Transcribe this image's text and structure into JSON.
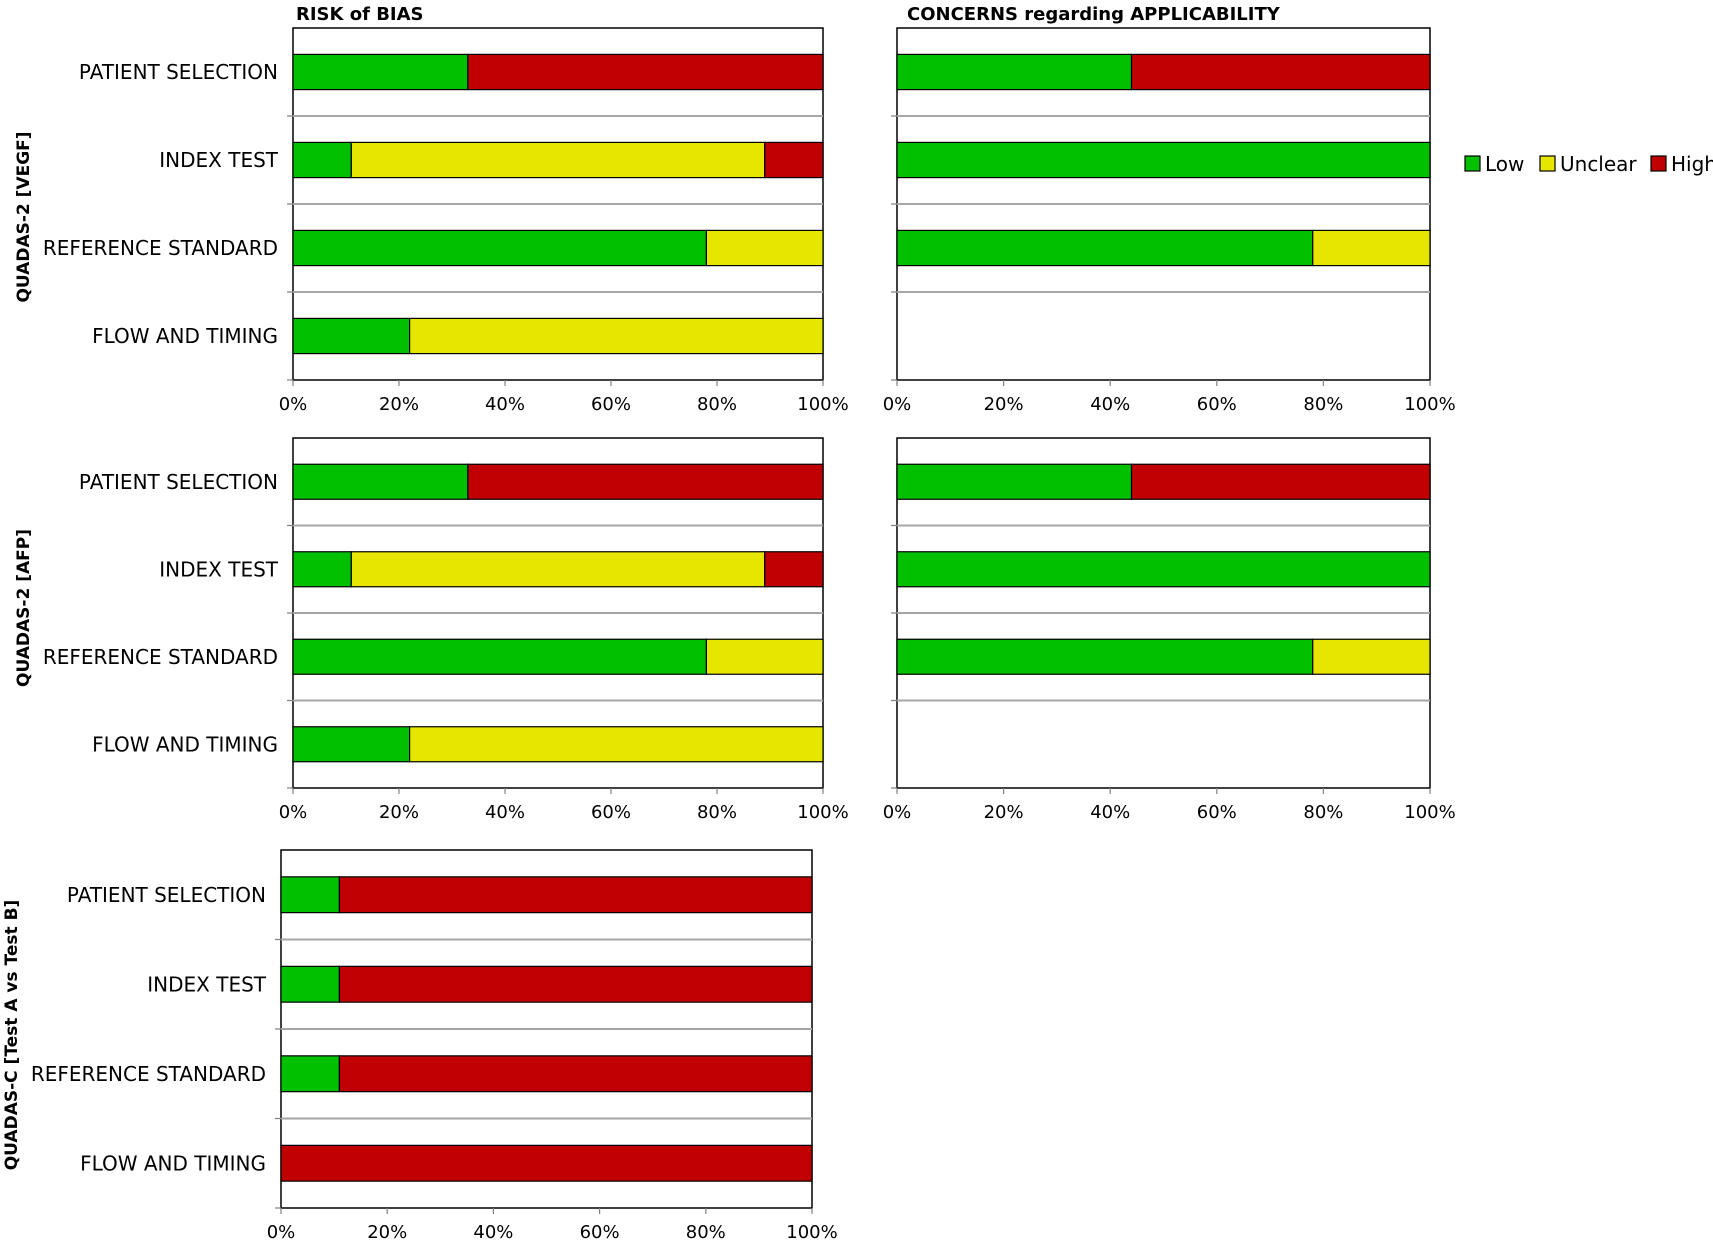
{
  "titles": {
    "risk_of_bias": "RISK of BIAS",
    "applicability": "CONCERNS regarding  APPLICABILITY"
  },
  "row_titles": [
    "QUADAS-2 [VEGF]",
    "QUADAS-2 [AFP]",
    "QUADAS-C [Test A vs Test B]"
  ],
  "legend": [
    {
      "label": "Low",
      "color": "#00c000"
    },
    {
      "label": "Unclear",
      "color": "#e6e600"
    },
    {
      "label": "High",
      "color": "#c00000"
    }
  ],
  "colors": {
    "low": "#00c000",
    "unclear": "#e6e600",
    "high": "#c00000"
  },
  "chart_data": [
    {
      "type": "bar",
      "stacked": "percent",
      "orientation": "horizontal",
      "title": "RISK of BIAS",
      "row_title": "QUADAS-2 [VEGF]",
      "categories": [
        "PATIENT SELECTION",
        "INDEX TEST",
        "REFERENCE STANDARD",
        "FLOW AND TIMING"
      ],
      "series": [
        {
          "name": "Low",
          "values": [
            33,
            11,
            78,
            22
          ]
        },
        {
          "name": "Unclear",
          "values": [
            0,
            78,
            22,
            78
          ]
        },
        {
          "name": "High",
          "values": [
            67,
            11,
            0,
            0
          ]
        }
      ],
      "xlim": [
        0,
        100
      ],
      "xticks": [
        "0%",
        "20%",
        "40%",
        "60%",
        "80%",
        "100%"
      ]
    },
    {
      "type": "bar",
      "stacked": "percent",
      "orientation": "horizontal",
      "title": "CONCERNS regarding  APPLICABILITY",
      "row_title": "QUADAS-2 [VEGF]",
      "categories": [
        "PATIENT SELECTION",
        "INDEX TEST",
        "REFERENCE STANDARD"
      ],
      "series": [
        {
          "name": "Low",
          "values": [
            44,
            100,
            78
          ]
        },
        {
          "name": "Unclear",
          "values": [
            0,
            0,
            22
          ]
        },
        {
          "name": "High",
          "values": [
            56,
            0,
            0
          ]
        }
      ],
      "xlim": [
        0,
        100
      ],
      "xticks": [
        "0%",
        "20%",
        "40%",
        "60%",
        "80%",
        "100%"
      ]
    },
    {
      "type": "bar",
      "stacked": "percent",
      "orientation": "horizontal",
      "title": "RISK of BIAS",
      "row_title": "QUADAS-2 [AFP]",
      "categories": [
        "PATIENT SELECTION",
        "INDEX TEST",
        "REFERENCE STANDARD",
        "FLOW AND TIMING"
      ],
      "series": [
        {
          "name": "Low",
          "values": [
            33,
            11,
            78,
            22
          ]
        },
        {
          "name": "Unclear",
          "values": [
            0,
            78,
            22,
            78
          ]
        },
        {
          "name": "High",
          "values": [
            67,
            11,
            0,
            0
          ]
        }
      ],
      "xlim": [
        0,
        100
      ],
      "xticks": [
        "0%",
        "20%",
        "40%",
        "60%",
        "80%",
        "100%"
      ]
    },
    {
      "type": "bar",
      "stacked": "percent",
      "orientation": "horizontal",
      "title": "CONCERNS regarding  APPLICABILITY",
      "row_title": "QUADAS-2 [AFP]",
      "categories": [
        "PATIENT SELECTION",
        "INDEX TEST",
        "REFERENCE STANDARD"
      ],
      "series": [
        {
          "name": "Low",
          "values": [
            44,
            100,
            78
          ]
        },
        {
          "name": "Unclear",
          "values": [
            0,
            0,
            22
          ]
        },
        {
          "name": "High",
          "values": [
            56,
            0,
            0
          ]
        }
      ],
      "xlim": [
        0,
        100
      ],
      "xticks": [
        "0%",
        "20%",
        "40%",
        "60%",
        "80%",
        "100%"
      ]
    },
    {
      "type": "bar",
      "stacked": "percent",
      "orientation": "horizontal",
      "title": "RISK of BIAS",
      "row_title": "QUADAS-C [Test A vs Test B]",
      "categories": [
        "PATIENT SELECTION",
        "INDEX TEST",
        "REFERENCE STANDARD",
        "FLOW AND TIMING"
      ],
      "series": [
        {
          "name": "Low",
          "values": [
            11,
            11,
            11,
            0
          ]
        },
        {
          "name": "Unclear",
          "values": [
            0,
            0,
            0,
            0
          ]
        },
        {
          "name": "High",
          "values": [
            89,
            89,
            89,
            100
          ]
        }
      ],
      "xlim": [
        0,
        100
      ],
      "xticks": [
        "0%",
        "20%",
        "40%",
        "60%",
        "80%",
        "100%"
      ]
    }
  ]
}
